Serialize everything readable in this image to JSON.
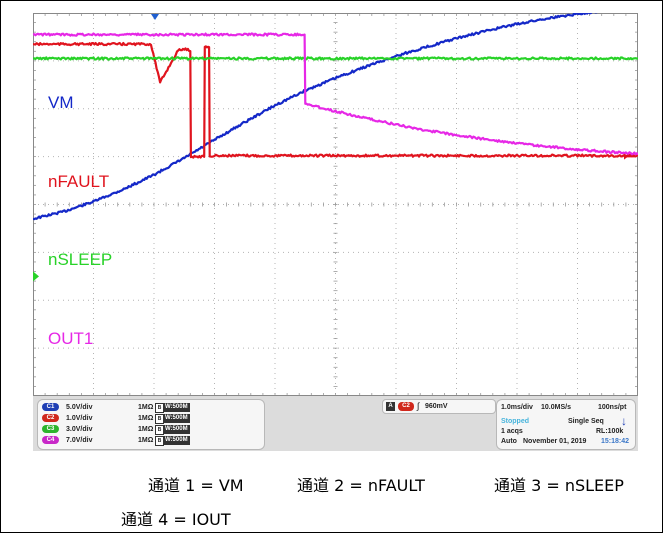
{
  "chart_data": {
    "type": "line",
    "title": "",
    "grid": true,
    "series": [
      {
        "name": "VM",
        "color": "#1428c8",
        "x": [
          0,
          0.5,
          1,
          1.5,
          2,
          2.5,
          3,
          3.5,
          4,
          4.5,
          5,
          5.5,
          6,
          6.5,
          7,
          7.5,
          8,
          8.5,
          9,
          9.5,
          10
        ],
        "y": [
          4.3,
          4.15,
          3.94,
          3.68,
          3.38,
          3.03,
          2.65,
          2.28,
          1.93,
          1.62,
          1.36,
          1.12,
          0.9,
          0.71,
          0.53,
          0.37,
          0.23,
          0.11,
          0.02,
          -0.07,
          -0.12
        ]
      },
      {
        "name": "nFAULT",
        "color": "#e0141e",
        "x": [
          0,
          1.95,
          2.1,
          2.4,
          2.5,
          2.6,
          2.61,
          2.83,
          2.84,
          2.91,
          2.92,
          2.98,
          3.0,
          10
        ],
        "y": [
          0.65,
          0.65,
          1.45,
          0.78,
          0.75,
          0.78,
          3.0,
          3.0,
          0.7,
          0.7,
          3.0,
          3.0,
          2.98,
          2.98
        ]
      },
      {
        "name": "nSLEEP",
        "color": "#28d228",
        "x": [
          0,
          10
        ],
        "y": [
          0.95,
          0.95
        ]
      },
      {
        "name": "OUT1",
        "color": "#e628e6",
        "x": [
          0,
          4.49,
          4.5,
          5,
          5.5,
          6,
          6.5,
          7,
          7.5,
          8,
          8.5,
          9,
          9.5,
          10
        ],
        "y": [
          0.45,
          0.45,
          1.9,
          2.05,
          2.2,
          2.33,
          2.45,
          2.55,
          2.64,
          2.72,
          2.79,
          2.85,
          2.9,
          2.94
        ]
      }
    ],
    "trace_labels": [
      "VM",
      "nFAULT",
      "nSLEEP",
      "OUT1"
    ]
  },
  "status": {
    "channels": [
      {
        "badge": "C1",
        "color": "#1f3fb4",
        "scale": "5.0V/div",
        "impedance": "1MΩ",
        "bw_badge": "B",
        "bw": "W:500M"
      },
      {
        "badge": "C2",
        "color": "#d0281c",
        "scale": "1.0V/div",
        "impedance": "1MΩ",
        "bw_badge": "B",
        "bw": "W:500M"
      },
      {
        "badge": "C3",
        "color": "#2db42d",
        "scale": "3.0V/div",
        "impedance": "1MΩ",
        "bw_badge": "B",
        "bw": "W:500M"
      },
      {
        "badge": "C4",
        "color": "#c828c8",
        "scale": "7.0V/div",
        "impedance": "1MΩ",
        "bw_badge": "B",
        "bw": "W:500M"
      }
    ],
    "trigger": {
      "mode": "A",
      "source": "C2",
      "slope": "∫",
      "level": "960mV"
    },
    "acquisition": {
      "timebase": "1.0ms/div",
      "sample_rate": "10.0MS/s",
      "resolution": "100ns/pt",
      "state": "Stopped",
      "seq": "Single Seq",
      "acqs": "1 acqs",
      "record": "RL:100k",
      "auto": "Auto",
      "date": "November 01, 2019",
      "time": "15:18:42",
      "state_color": "#46b4dc",
      "time_color": "#3c78c8"
    }
  },
  "captions": {
    "ch1": "通道 1 = VM",
    "ch2": "通道 2 = nFAULT",
    "ch3": "通道 3 = nSLEEP",
    "ch4": "通道 4 = IOUT"
  }
}
